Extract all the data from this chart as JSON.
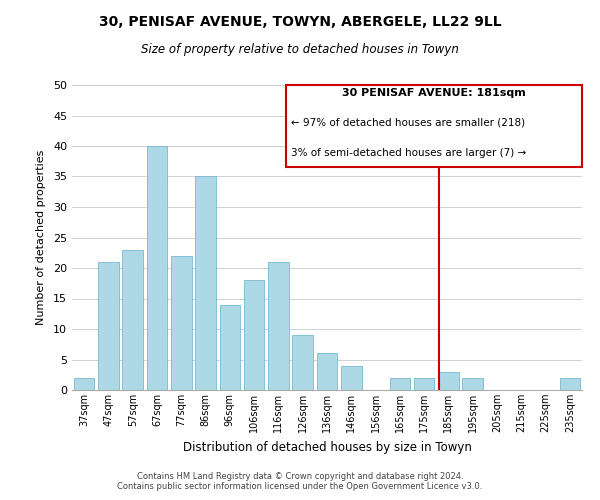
{
  "title": "30, PENISAF AVENUE, TOWYN, ABERGELE, LL22 9LL",
  "subtitle": "Size of property relative to detached houses in Towyn",
  "xlabel": "Distribution of detached houses by size in Towyn",
  "ylabel": "Number of detached properties",
  "bar_labels": [
    "37sqm",
    "47sqm",
    "57sqm",
    "67sqm",
    "77sqm",
    "86sqm",
    "96sqm",
    "106sqm",
    "116sqm",
    "126sqm",
    "136sqm",
    "146sqm",
    "156sqm",
    "165sqm",
    "175sqm",
    "185sqm",
    "195sqm",
    "205sqm",
    "215sqm",
    "225sqm",
    "235sqm"
  ],
  "bar_heights": [
    2,
    21,
    23,
    40,
    22,
    35,
    14,
    18,
    21,
    9,
    6,
    4,
    0,
    2,
    2,
    3,
    2,
    0,
    0,
    0,
    2
  ],
  "bar_color": "#add8e6",
  "bar_edge_color": "#7ab8d4",
  "grid_color": "#d0d0d0",
  "vline_color": "#cc0000",
  "annotation_title": "30 PENISAF AVENUE: 181sqm",
  "annotation_line1": "← 97% of detached houses are smaller (218)",
  "annotation_line2": "3% of semi-detached houses are larger (7) →",
  "annotation_box_facecolor": "#ffffff",
  "annotation_box_edgecolor": "#cc0000",
  "ylim": [
    0,
    50
  ],
  "yticks": [
    0,
    5,
    10,
    15,
    20,
    25,
    30,
    35,
    40,
    45,
    50
  ],
  "footer1": "Contains HM Land Registry data © Crown copyright and database right 2024.",
  "footer2": "Contains public sector information licensed under the Open Government Licence v3.0."
}
